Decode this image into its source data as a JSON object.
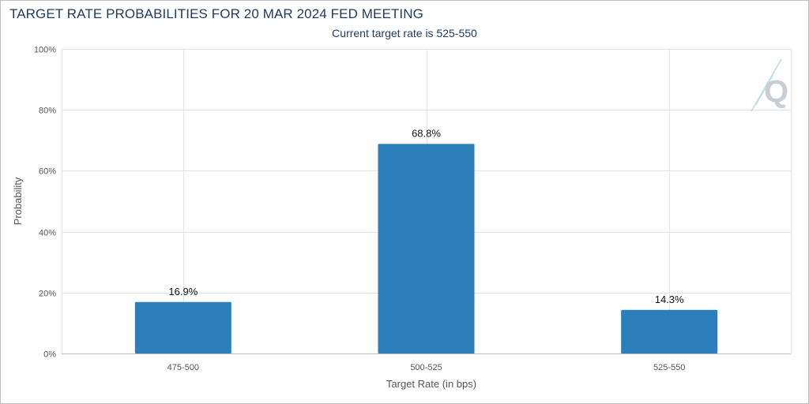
{
  "title": "TARGET RATE PROBABILITIES FOR 20 MAR 2024 FED MEETING",
  "subtitle": "Current target rate is 525-550",
  "colors": {
    "bar": "#2b7fba",
    "title": "#1f3a5f",
    "grid": "#e3e3e3",
    "axis": "#bdbdbd"
  },
  "logo": {
    "icon": "q-logo-icon"
  },
  "chart_data": {
    "type": "bar",
    "title": "TARGET RATE PROBABILITIES FOR 20 MAR 2024 FED MEETING",
    "subtitle": "Current target rate is 525-550",
    "xlabel": "Target Rate (in bps)",
    "ylabel": "Probability",
    "categories": [
      "475-500",
      "500-525",
      "525-550"
    ],
    "values": [
      16.9,
      68.8,
      14.3
    ],
    "value_labels": [
      "16.9%",
      "68.8%",
      "14.3%"
    ],
    "ylim": [
      0,
      100
    ],
    "yticks": [
      0,
      20,
      40,
      60,
      80,
      100
    ],
    "ytick_labels": [
      "0%",
      "20%",
      "40%",
      "60%",
      "80%",
      "100%"
    ],
    "grid": true,
    "legend": "none"
  }
}
